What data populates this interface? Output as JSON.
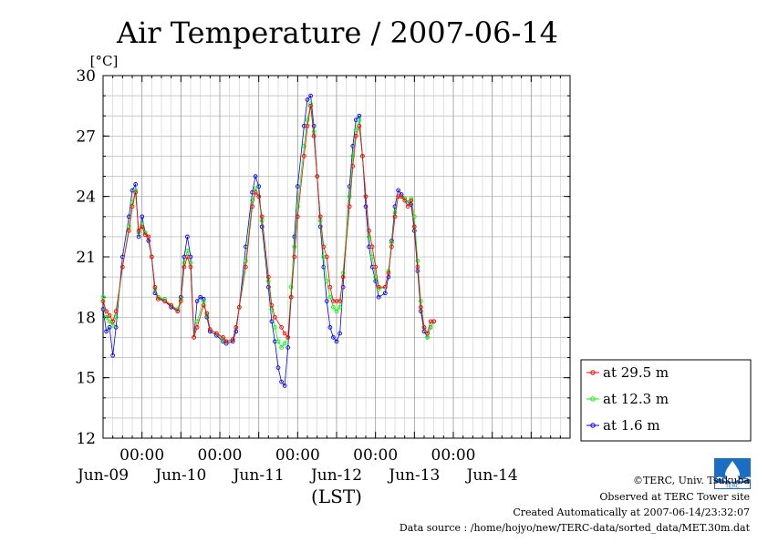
{
  "chart_data": {
    "type": "line",
    "title": "Air Temperature / 2007-06-14",
    "ylabel": "[°C]",
    "xlabel": "(LST)",
    "ylim": [
      12,
      30
    ],
    "yticks": [
      12,
      15,
      18,
      21,
      24,
      27,
      30
    ],
    "xlim_hours_from_jun08_1200": [
      0,
      144
    ],
    "x_time_labels": [
      "00:00",
      "00:00",
      "00:00",
      "00:00",
      "00:00"
    ],
    "x_date_labels": [
      "Jun-09",
      "Jun-10",
      "Jun-11",
      "Jun-12",
      "Jun-13",
      "Jun-14"
    ],
    "grid": true,
    "legend_position": "right",
    "series": [
      {
        "name": "at 29.5 m",
        "color": "#ff0000",
        "points": [
          [
            0,
            18.8
          ],
          [
            1,
            18.3
          ],
          [
            2,
            18.1
          ],
          [
            3,
            17.8
          ],
          [
            4,
            18.3
          ],
          [
            6,
            20.5
          ],
          [
            8,
            22.3
          ],
          [
            9,
            23.5
          ],
          [
            10,
            24.2
          ],
          [
            11,
            22.3
          ],
          [
            12,
            22.5
          ],
          [
            13,
            22.1
          ],
          [
            14,
            22.0
          ],
          [
            15,
            21.0
          ],
          [
            16,
            19.5
          ],
          [
            17,
            18.9
          ],
          [
            19,
            18.8
          ],
          [
            21,
            18.6
          ],
          [
            23,
            18.3
          ],
          [
            24,
            18.8
          ],
          [
            25,
            20.5
          ],
          [
            26,
            21.0
          ],
          [
            27,
            20.5
          ],
          [
            28,
            17.0
          ],
          [
            29,
            17.5
          ],
          [
            31,
            18.6
          ],
          [
            32,
            18.2
          ],
          [
            33,
            17.4
          ],
          [
            35,
            17.2
          ],
          [
            37,
            17.0
          ],
          [
            38,
            16.8
          ],
          [
            40,
            16.9
          ],
          [
            41,
            17.5
          ],
          [
            42,
            18.5
          ],
          [
            44,
            20.5
          ],
          [
            46,
            23.5
          ],
          [
            47,
            24.2
          ],
          [
            48,
            24.0
          ],
          [
            49,
            23.0
          ],
          [
            51,
            20.0
          ],
          [
            52,
            18.6
          ],
          [
            53,
            18.0
          ],
          [
            55,
            17.5
          ],
          [
            56,
            17.2
          ],
          [
            57,
            17.0
          ],
          [
            58,
            19.0
          ],
          [
            59,
            21.0
          ],
          [
            60,
            23.0
          ],
          [
            62,
            26.0
          ],
          [
            63,
            27.5
          ],
          [
            64,
            28.5
          ],
          [
            65,
            27.0
          ],
          [
            66,
            25.0
          ],
          [
            67,
            23.0
          ],
          [
            68,
            21.5
          ],
          [
            69,
            21.0
          ],
          [
            70,
            19.5
          ],
          [
            71,
            18.8
          ],
          [
            72,
            18.8
          ],
          [
            73,
            18.8
          ],
          [
            74,
            20.0
          ],
          [
            76,
            23.5
          ],
          [
            77,
            25.5
          ],
          [
            78,
            27.0
          ],
          [
            79,
            27.5
          ],
          [
            80,
            26.0
          ],
          [
            81,
            24.0
          ],
          [
            82,
            22.3
          ],
          [
            83,
            21.5
          ],
          [
            84,
            20.5
          ],
          [
            85,
            19.5
          ],
          [
            87,
            19.5
          ],
          [
            88,
            20.2
          ],
          [
            89,
            21.5
          ],
          [
            90,
            23.0
          ],
          [
            91,
            24.0
          ],
          [
            92,
            24.0
          ],
          [
            93,
            23.8
          ],
          [
            94,
            23.5
          ],
          [
            95,
            23.8
          ],
          [
            96,
            22.5
          ],
          [
            97,
            20.5
          ],
          [
            98,
            18.5
          ],
          [
            99,
            17.5
          ],
          [
            100,
            17.2
          ],
          [
            101,
            17.8
          ],
          [
            102,
            17.8
          ]
        ]
      },
      {
        "name": "at 12.3 m",
        "color": "#00ff00",
        "points": [
          [
            0,
            19.0
          ],
          [
            1,
            18.0
          ],
          [
            2,
            17.8
          ],
          [
            3,
            17.6
          ],
          [
            4,
            18.0
          ],
          [
            6,
            20.5
          ],
          [
            8,
            22.5
          ],
          [
            9,
            23.7
          ],
          [
            10,
            24.3
          ],
          [
            11,
            22.2
          ],
          [
            12,
            22.6
          ],
          [
            13,
            22.2
          ],
          [
            14,
            22.0
          ],
          [
            15,
            21.0
          ],
          [
            16,
            19.4
          ],
          [
            17,
            19.0
          ],
          [
            19,
            18.9
          ],
          [
            21,
            18.6
          ],
          [
            23,
            18.4
          ],
          [
            24,
            18.9
          ],
          [
            25,
            20.7
          ],
          [
            26,
            21.3
          ],
          [
            27,
            20.7
          ],
          [
            28,
            17.0
          ],
          [
            29,
            17.8
          ],
          [
            31,
            18.8
          ],
          [
            32,
            18.1
          ],
          [
            33,
            17.4
          ],
          [
            35,
            17.2
          ],
          [
            37,
            16.9
          ],
          [
            38,
            16.8
          ],
          [
            40,
            16.9
          ],
          [
            41,
            17.5
          ],
          [
            42,
            18.5
          ],
          [
            44,
            20.8
          ],
          [
            46,
            23.8
          ],
          [
            47,
            24.4
          ],
          [
            48,
            24.0
          ],
          [
            49,
            22.8
          ],
          [
            51,
            19.8
          ],
          [
            52,
            18.4
          ],
          [
            53,
            17.5
          ],
          [
            54,
            16.8
          ],
          [
            55,
            16.5
          ],
          [
            56,
            16.7
          ],
          [
            57,
            17.0
          ],
          [
            58,
            19.5
          ],
          [
            59,
            21.5
          ],
          [
            60,
            23.5
          ],
          [
            62,
            26.5
          ],
          [
            63,
            27.8
          ],
          [
            64,
            28.6
          ],
          [
            65,
            27.2
          ],
          [
            66,
            25.0
          ],
          [
            67,
            22.8
          ],
          [
            68,
            21.0
          ],
          [
            69,
            19.8
          ],
          [
            70,
            19.0
          ],
          [
            71,
            18.5
          ],
          [
            72,
            18.3
          ],
          [
            73,
            18.5
          ],
          [
            74,
            20.2
          ],
          [
            76,
            24.0
          ],
          [
            77,
            26.0
          ],
          [
            78,
            27.3
          ],
          [
            79,
            27.8
          ],
          [
            80,
            26.0
          ],
          [
            81,
            24.0
          ],
          [
            82,
            22.0
          ],
          [
            83,
            21.0
          ],
          [
            84,
            20.0
          ],
          [
            85,
            19.4
          ],
          [
            87,
            19.5
          ],
          [
            88,
            20.3
          ],
          [
            89,
            21.7
          ],
          [
            90,
            23.2
          ],
          [
            91,
            24.0
          ],
          [
            92,
            24.0
          ],
          [
            93,
            23.9
          ],
          [
            94,
            23.7
          ],
          [
            95,
            23.9
          ],
          [
            96,
            23.0
          ],
          [
            97,
            20.8
          ],
          [
            98,
            18.8
          ],
          [
            99,
            17.5
          ],
          [
            100,
            17.0
          ],
          [
            101,
            17.5
          ],
          [
            102,
            17.8
          ]
        ]
      },
      {
        "name": "at 1.6 m",
        "color": "#0000ff",
        "points": [
          [
            0,
            18.4
          ],
          [
            1,
            17.3
          ],
          [
            2,
            17.5
          ],
          [
            3,
            16.1
          ],
          [
            4,
            17.5
          ],
          [
            6,
            21.0
          ],
          [
            8,
            23.0
          ],
          [
            9,
            24.3
          ],
          [
            10,
            24.6
          ],
          [
            11,
            22.0
          ],
          [
            12,
            23.0
          ],
          [
            13,
            22.2
          ],
          [
            14,
            21.8
          ],
          [
            15,
            21.0
          ],
          [
            16,
            19.2
          ],
          [
            17,
            19.0
          ],
          [
            19,
            18.8
          ],
          [
            21,
            18.5
          ],
          [
            23,
            18.3
          ],
          [
            24,
            19.0
          ],
          [
            25,
            21.0
          ],
          [
            26,
            22.0
          ],
          [
            27,
            21.0
          ],
          [
            28,
            17.0
          ],
          [
            29,
            18.8
          ],
          [
            30,
            19.0
          ],
          [
            31,
            18.9
          ],
          [
            32,
            18.0
          ],
          [
            33,
            17.3
          ],
          [
            35,
            17.1
          ],
          [
            37,
            16.8
          ],
          [
            38,
            16.7
          ],
          [
            40,
            16.8
          ],
          [
            41,
            17.3
          ],
          [
            42,
            18.5
          ],
          [
            44,
            21.5
          ],
          [
            46,
            24.2
          ],
          [
            47,
            25.0
          ],
          [
            48,
            24.5
          ],
          [
            49,
            22.5
          ],
          [
            51,
            19.5
          ],
          [
            52,
            17.8
          ],
          [
            53,
            16.8
          ],
          [
            54,
            15.5
          ],
          [
            55,
            14.8
          ],
          [
            56,
            14.6
          ],
          [
            57,
            16.5
          ],
          [
            58,
            19.0
          ],
          [
            59,
            22.0
          ],
          [
            60,
            24.5
          ],
          [
            62,
            27.5
          ],
          [
            63,
            28.8
          ],
          [
            64,
            29.0
          ],
          [
            65,
            27.5
          ],
          [
            66,
            25.0
          ],
          [
            67,
            22.5
          ],
          [
            68,
            20.5
          ],
          [
            69,
            18.8
          ],
          [
            70,
            17.5
          ],
          [
            71,
            17.0
          ],
          [
            72,
            16.8
          ],
          [
            73,
            17.2
          ],
          [
            74,
            19.5
          ],
          [
            76,
            24.5
          ],
          [
            77,
            26.5
          ],
          [
            78,
            27.8
          ],
          [
            79,
            28.0
          ],
          [
            80,
            26.0
          ],
          [
            81,
            23.5
          ],
          [
            82,
            21.5
          ],
          [
            83,
            20.5
          ],
          [
            84,
            19.8
          ],
          [
            85,
            19.0
          ],
          [
            87,
            19.2
          ],
          [
            88,
            20.0
          ],
          [
            89,
            21.8
          ],
          [
            90,
            23.5
          ],
          [
            91,
            24.3
          ],
          [
            92,
            24.1
          ],
          [
            93,
            23.9
          ],
          [
            94,
            23.7
          ],
          [
            95,
            23.6
          ],
          [
            96,
            22.3
          ],
          [
            97,
            20.3
          ],
          [
            98,
            18.3
          ],
          [
            99,
            17.3
          ],
          [
            100,
            17.0
          ],
          [
            101,
            17.5
          ],
          [
            102,
            17.8
          ]
        ]
      }
    ]
  },
  "footer": {
    "copyright": "©TERC, Univ. Tsukuba",
    "observed": "Observed at TERC Tower site",
    "created": "Created Automatically at 2007-06-14/23:32:07",
    "source": "Data source : /home/hojyo/new/TERC-data/sorted_data/MET.30m.dat"
  }
}
